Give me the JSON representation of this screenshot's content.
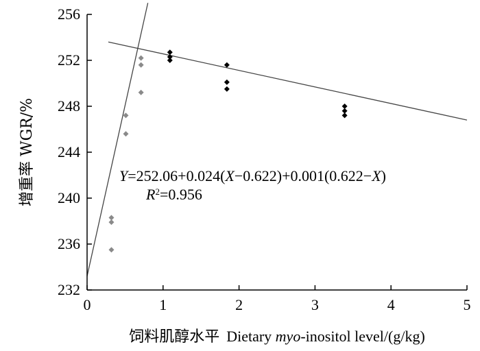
{
  "chart_data": {
    "type": "scatter",
    "title": "",
    "xlabel_cn": "饲料肌醇水平",
    "xlabel_en_pre": "Dietary ",
    "xlabel_en_italic": "myo",
    "xlabel_en_post": "-inositol level/(g/kg)",
    "ylabel": "增重率  WGR/%",
    "xlim": [
      0,
      5
    ],
    "ylim": [
      232,
      256
    ],
    "x_ticks": [
      0,
      1,
      2,
      3,
      4,
      5
    ],
    "y_ticks": [
      232,
      236,
      240,
      244,
      248,
      252,
      256
    ],
    "grid": false,
    "series": [
      {
        "marker": "diamond",
        "color": "#8a8a8a",
        "points": [
          {
            "x": 0.32,
            "y": 238.3
          },
          {
            "x": 0.32,
            "y": 237.9
          },
          {
            "x": 0.32,
            "y": 235.5
          },
          {
            "x": 0.51,
            "y": 247.2
          },
          {
            "x": 0.51,
            "y": 245.6
          },
          {
            "x": 0.71,
            "y": 252.2
          },
          {
            "x": 0.71,
            "y": 251.6
          },
          {
            "x": 0.71,
            "y": 249.2
          }
        ]
      },
      {
        "marker": "diamond",
        "color": "#000000",
        "points": [
          {
            "x": 1.09,
            "y": 252.7
          },
          {
            "x": 1.09,
            "y": 252.3
          },
          {
            "x": 1.09,
            "y": 252.0
          },
          {
            "x": 1.84,
            "y": 251.6
          },
          {
            "x": 1.84,
            "y": 250.1
          },
          {
            "x": 1.84,
            "y": 249.5
          },
          {
            "x": 3.39,
            "y": 248.0
          },
          {
            "x": 3.39,
            "y": 247.6
          },
          {
            "x": 3.39,
            "y": 247.2
          }
        ]
      }
    ],
    "fit_lines": [
      {
        "x1": 0.0,
        "y1": 233.2,
        "x2": 0.8,
        "y2": 257.0
      },
      {
        "x1": 0.28,
        "y1": 253.6,
        "x2": 5.0,
        "y2": 246.8
      }
    ],
    "annotation": {
      "equation": "Y=252.06+0.024(X−0.622)+0.001(0.622−X)",
      "r2_label": "R",
      "r2_sup": "2",
      "r2_value": "=0.956"
    }
  }
}
